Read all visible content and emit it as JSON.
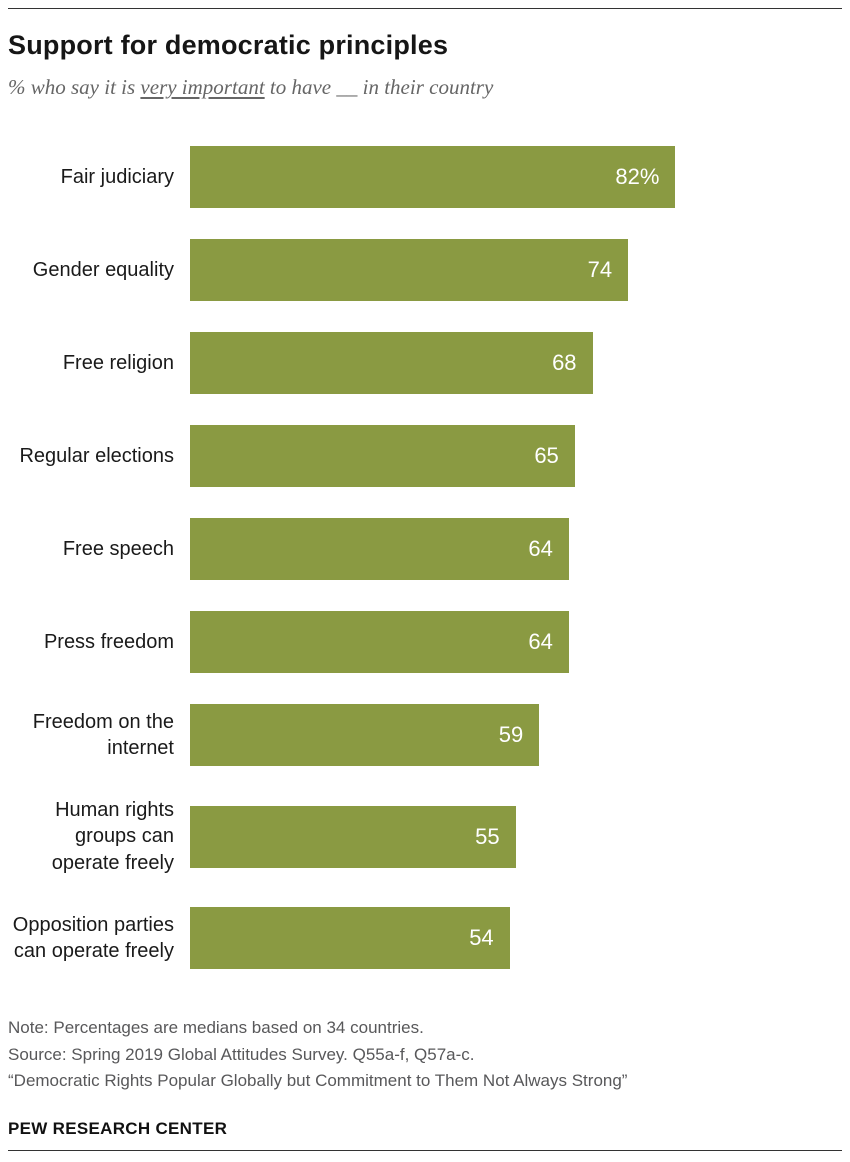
{
  "header": {
    "title": "Support for democratic principles",
    "subtitle_prefix": "% who say it is ",
    "subtitle_underlined": "very important",
    "subtitle_suffix": " to have __ in their country"
  },
  "chart_data": {
    "type": "bar",
    "orientation": "horizontal",
    "categories": [
      "Fair judiciary",
      "Gender equality",
      "Free religion",
      "Regular elections",
      "Free speech",
      "Press freedom",
      "Freedom on the internet",
      "Human rights groups can operate freely",
      "Opposition parties can operate freely"
    ],
    "values": [
      82,
      74,
      68,
      65,
      64,
      64,
      59,
      55,
      54
    ],
    "value_labels": [
      "82%",
      "74",
      "68",
      "65",
      "64",
      "64",
      "59",
      "55",
      "54"
    ],
    "bar_color": "#8a9a42",
    "xlim": [
      0,
      100
    ],
    "title": "Support for democratic principles",
    "xlabel": "",
    "ylabel": "",
    "grid": false,
    "legend": "none"
  },
  "footer": {
    "note": "Note: Percentages are medians based on 34 countries.",
    "source": "Source: Spring 2019 Global Attitudes Survey. Q55a-f, Q57a-c.",
    "report": "“Democratic Rights Popular Globally but Commitment to Them Not Always Strong”",
    "brand": "PEW RESEARCH CENTER"
  }
}
